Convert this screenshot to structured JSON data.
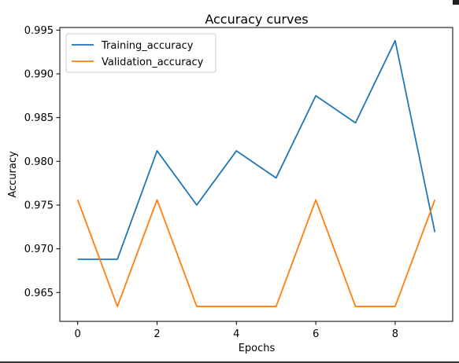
{
  "chart_data": {
    "type": "line",
    "title": "Accuracy curves",
    "xlabel": "Epochs",
    "ylabel": "Accuracy",
    "x": [
      0,
      1,
      2,
      3,
      4,
      5,
      6,
      7,
      8,
      9
    ],
    "xlim": [
      -0.45,
      9.45
    ],
    "ylim": [
      0.9617,
      0.9953
    ],
    "xticks": [
      0,
      2,
      4,
      6,
      8
    ],
    "yticks": [
      "0.965",
      "0.970",
      "0.975",
      "0.980",
      "0.985",
      "0.990",
      "0.995"
    ],
    "grid": false,
    "legend_position": "top-left",
    "series": [
      {
        "name": "Training_accuracy",
        "color": "#1f77b4",
        "values": [
          0.9688,
          0.9688,
          0.9812,
          0.975,
          0.9812,
          0.9781,
          0.9875,
          0.9844,
          0.9938,
          0.9719
        ]
      },
      {
        "name": "Validation_accuracy",
        "color": "#ff7f0e",
        "values": [
          0.9756,
          0.9634,
          0.9756,
          0.9634,
          0.9634,
          0.9634,
          0.9756,
          0.9634,
          0.9634,
          0.9756
        ]
      }
    ]
  }
}
